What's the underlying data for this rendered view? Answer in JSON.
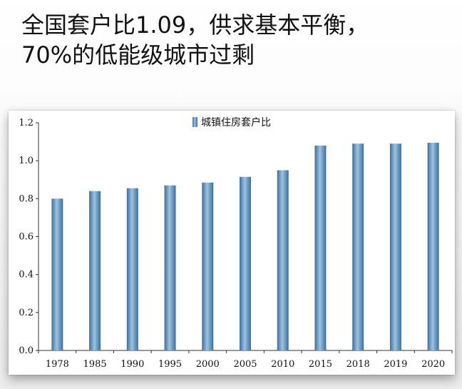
{
  "title": {
    "line1": "全国套户比1.09，供求基本平衡，",
    "line2": "70%的低能级城市过剩"
  },
  "chart_data": {
    "type": "bar",
    "categories": [
      "1978",
      "1985",
      "1990",
      "1995",
      "2000",
      "2005",
      "2010",
      "2015",
      "2018",
      "2019",
      "2020"
    ],
    "series": [
      {
        "name": "城镇住房套户比",
        "values": [
          0.8,
          0.84,
          0.855,
          0.87,
          0.885,
          0.915,
          0.95,
          1.08,
          1.09,
          1.09,
          1.095
        ]
      }
    ],
    "ylim": [
      0,
      1.2
    ],
    "yticks": [
      "0.0",
      "0.2",
      "0.4",
      "0.6",
      "0.8",
      "1.0",
      "1.2"
    ],
    "grid": false,
    "legend_position": "top-center",
    "colors": {
      "bar_dark": "#3d6f9c",
      "bar_light": "#9cc3e1",
      "axis": "#333333"
    }
  }
}
